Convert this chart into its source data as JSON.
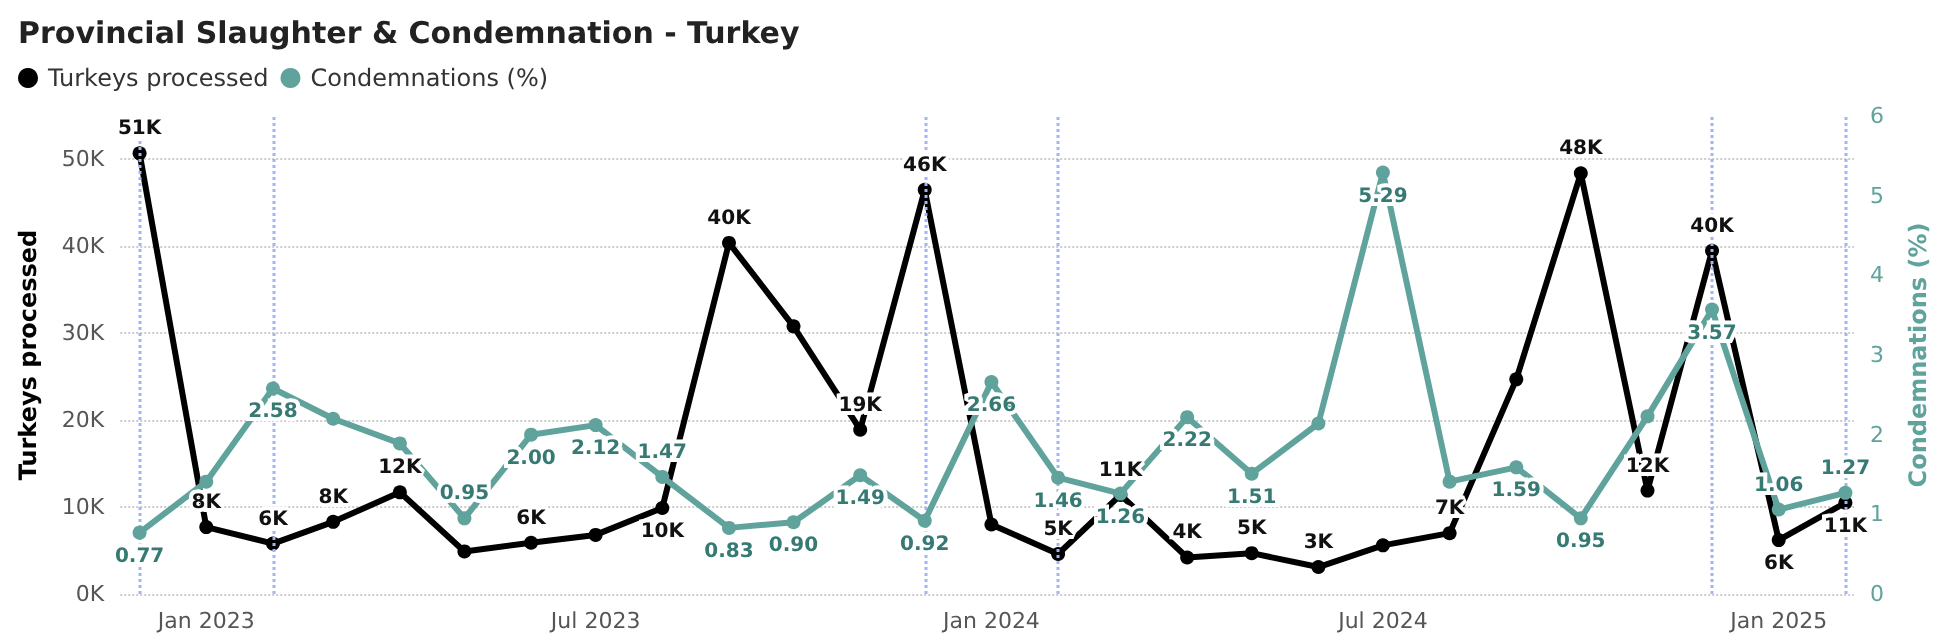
{
  "chart_data": {
    "type": "line",
    "title": "Provincial Slaughter & Condemnation - Turkey",
    "x": [
      "2022-12",
      "2023-01",
      "2023-02",
      "2023-03",
      "2023-04",
      "2023-05",
      "2023-06",
      "2023-07",
      "2023-08",
      "2023-09",
      "2023-10",
      "2023-11",
      "2023-12",
      "2024-01",
      "2024-02",
      "2024-03",
      "2024-04",
      "2024-05",
      "2024-06",
      "2024-07",
      "2024-08",
      "2024-09",
      "2024-10",
      "2024-11",
      "2024-12",
      "2025-01",
      "2025-02"
    ],
    "series": [
      {
        "name": "Turkeys processed",
        "color": "#000000",
        "values": [
          50700,
          7700,
          5800,
          8300,
          11700,
          4900,
          5900,
          6800,
          9900,
          40400,
          30800,
          18900,
          46500,
          8000,
          4600,
          11400,
          4200,
          4700,
          3100,
          5600,
          7000,
          24700,
          48400,
          11900,
          39500,
          6200,
          10500
        ],
        "value_labels": [
          "51K",
          "8K",
          "6K",
          "8K",
          "12K",
          null,
          "6K",
          null,
          "10K",
          "40K",
          null,
          "19K",
          "46K",
          null,
          "5K",
          "11K",
          "4K",
          "5K",
          "3K",
          null,
          "7K",
          null,
          "48K",
          "12K",
          "40K",
          "6K",
          "11K"
        ]
      },
      {
        "name": "Condemnations (%)",
        "color": "#5fa39c",
        "axis": "y2",
        "values": [
          0.77,
          1.41,
          2.58,
          2.2,
          1.89,
          0.95,
          2.0,
          2.12,
          1.47,
          0.83,
          0.9,
          1.49,
          0.92,
          2.66,
          1.46,
          1.26,
          2.22,
          1.51,
          2.14,
          5.29,
          1.41,
          1.59,
          0.95,
          2.23,
          3.57,
          1.06,
          1.27
        ],
        "value_labels": [
          "0.77",
          null,
          "2.58",
          null,
          null,
          "0.95",
          "2.00",
          "2.12",
          "1.47",
          "0.83",
          "0.90",
          "1.49",
          "0.92",
          "2.66",
          "1.46",
          "1.26",
          "2.22",
          "1.51",
          null,
          "5.29",
          null,
          "1.59",
          "0.95",
          null,
          "3.57",
          "1.06",
          "1.27"
        ]
      }
    ],
    "ylabel": "Turkeys processed",
    "y2label": "Condemnations (%)",
    "xlim": [
      "2022-11-22",
      "2025-02-05"
    ],
    "xticks": [
      {
        "value": "2023-01",
        "label": "Jan 2023"
      },
      {
        "value": "2023-07",
        "label": "Jul 2023"
      },
      {
        "value": "2024-01",
        "label": "Jan 2024"
      },
      {
        "value": "2024-07",
        "label": "Jul 2024"
      },
      {
        "value": "2025-01",
        "label": "Jan 2025"
      }
    ],
    "ylim": [
      0,
      55000
    ],
    "yticks": [
      {
        "value": 0,
        "label": "0K"
      },
      {
        "value": 10000,
        "label": "10K"
      },
      {
        "value": 20000,
        "label": "20K"
      },
      {
        "value": 30000,
        "label": "30K"
      },
      {
        "value": 40000,
        "label": "40K"
      },
      {
        "value": 50000,
        "label": "50K"
      }
    ],
    "y2lim": [
      0,
      6
    ],
    "y2ticks": [
      0,
      1,
      2,
      3,
      4,
      5,
      6
    ],
    "ref_lines": [
      {
        "axis": "x",
        "value": "2022-12",
        "color": "#a0b4f8",
        "line_style": "dotted"
      },
      {
        "axis": "x",
        "value": "2023-02",
        "color": "#a0b4f8",
        "line_style": "dotted"
      },
      {
        "axis": "x",
        "value": "2023-12",
        "color": "#a0b4f8",
        "line_style": "dotted"
      },
      {
        "axis": "x",
        "value": "2024-02",
        "color": "#a0b4f8",
        "line_style": "dotted"
      },
      {
        "axis": "x",
        "value": "2024-12",
        "color": "#a0b4f8",
        "line_style": "dotted"
      },
      {
        "axis": "x",
        "value": "2025-02",
        "color": "#a0b4f8",
        "line_style": "dotted"
      }
    ],
    "grid": "y",
    "legend": "top left",
    "marker": "circle",
    "line_style": "solid"
  }
}
